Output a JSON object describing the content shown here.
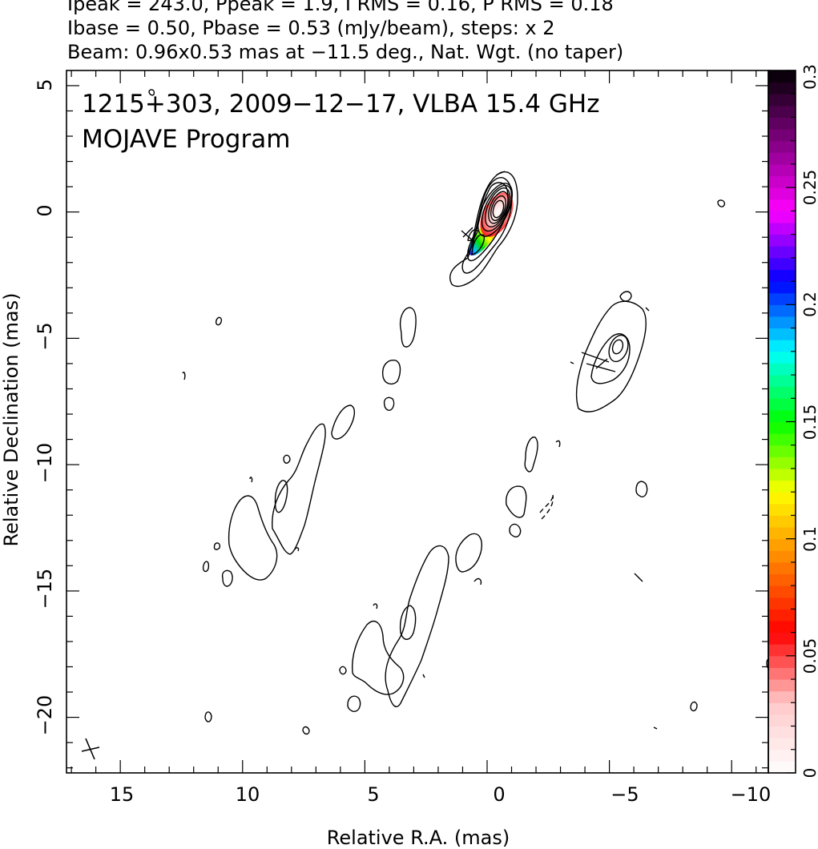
{
  "header": {
    "line1": "Ipeak = 243.0, Ppeak = 1.9, I RMS = 0.16, P RMS = 0.18",
    "line2": "Ibase = 0.50, Pbase = 0.53 (mJy/beam), steps: x 2",
    "line3": "Beam: 0.96x0.53 mas at −11.5 deg., Nat. Wgt. (no taper)"
  },
  "chart_data": {
    "type": "heatmap",
    "title": "1215+303, 2009−12−17, VLBA 15.4 GHz",
    "subtitle": "MOJAVE Program",
    "xlabel": "Relative R.A. (mas)",
    "ylabel": "Relative Declination (mas)",
    "xlim": [
      17.2,
      -11.5
    ],
    "ylim": [
      -22.2,
      5.6
    ],
    "xticks": [
      15,
      10,
      5,
      0,
      -5,
      -10
    ],
    "xtick_labels": [
      "15",
      "10",
      "5",
      "0",
      "−5",
      "−10"
    ],
    "yticks": [
      5,
      0,
      -5,
      -10,
      -15,
      -20
    ],
    "ytick_labels": [
      "5",
      "0",
      "−5",
      "−10",
      "−15",
      "−20"
    ],
    "colorbar": {
      "min": 0,
      "max": 0.3,
      "ticks": [
        0,
        0.05,
        0.1,
        0.15,
        0.2,
        0.25,
        0.3
      ],
      "tick_labels": [
        "0",
        "0.05",
        "0.1",
        "0.15",
        "0.2",
        "0.25",
        "0.3"
      ],
      "colors": [
        "#ffffff",
        "#ffc8c8",
        "#ff0000",
        "#ff8000",
        "#ffff00",
        "#00ff00",
        "#00ffff",
        "#0000ff",
        "#ff00ff",
        "#800080",
        "#000000"
      ]
    },
    "core": {
      "ra": 0,
      "dec": 0,
      "contour_levels": 9,
      "polarization_peak_ra": 1.0,
      "polarization_peak_dec": -1.3
    },
    "jet_components": [
      {
        "ra": -4.7,
        "dec": -5.3,
        "extent_ra": 2.5,
        "extent_dec": 5.0
      },
      {
        "ra": 10.0,
        "dec": -12.5,
        "extent_ra": 4.0,
        "extent_dec": 6.0
      },
      {
        "ra": 4.5,
        "dec": -17.5,
        "extent_ra": 6.0,
        "extent_dec": 6.0
      }
    ]
  }
}
